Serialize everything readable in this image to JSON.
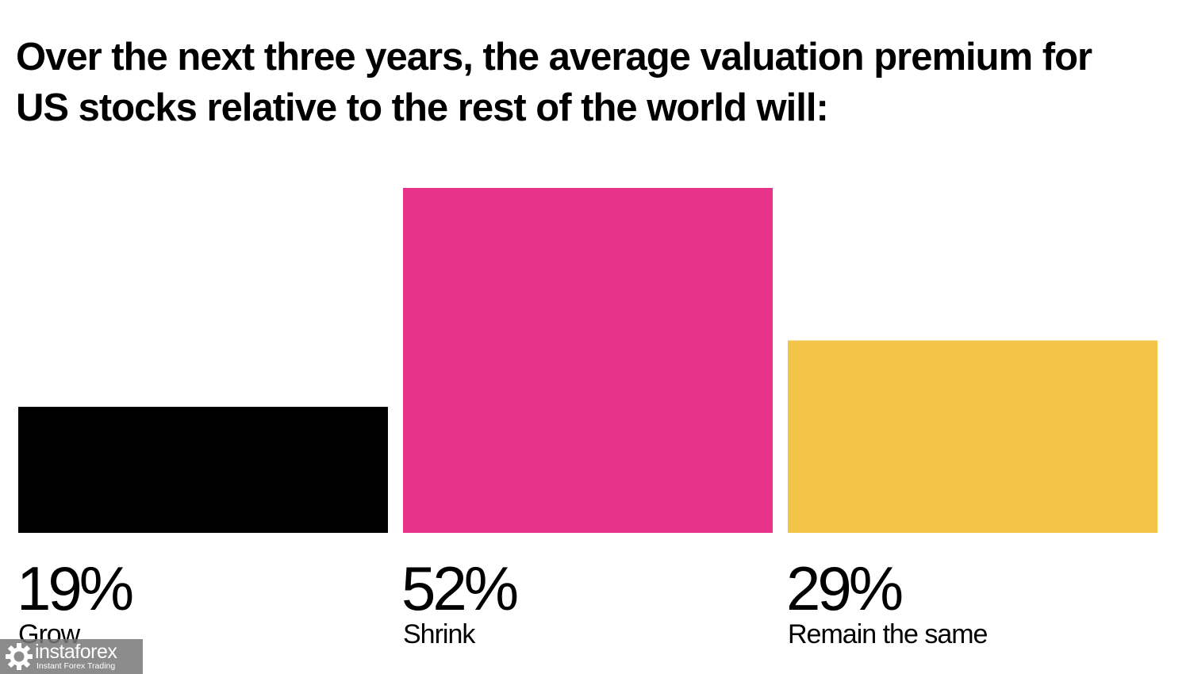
{
  "chart_data": {
    "type": "bar",
    "title": "Over the next three years, the average valuation premium for US stocks relative to the rest of the world will:",
    "categories": [
      "Grow",
      "Shrink",
      "Remain the same"
    ],
    "values": [
      19,
      52,
      29
    ],
    "value_labels": [
      "19%",
      "52%",
      "29%"
    ],
    "colors": [
      "#000000",
      "#e8338a",
      "#f4c448"
    ],
    "unit": "%",
    "ylim": [
      0,
      52
    ],
    "grid": false,
    "legend": "none"
  },
  "watermark": {
    "brand": "instaforex",
    "tagline": "Instant Forex Trading",
    "icon": "instaforex-logo-icon"
  }
}
